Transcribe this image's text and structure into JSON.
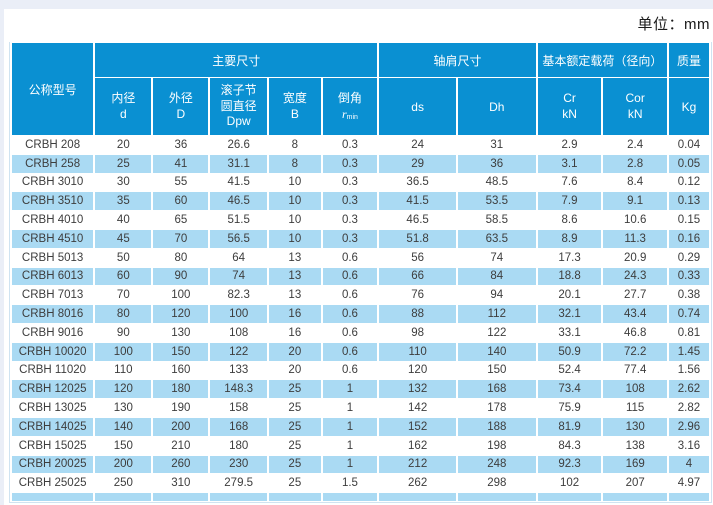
{
  "page": {
    "unit_label": "单位：mm"
  },
  "colors": {
    "header_bg": "#0a90d2",
    "row_alt_bg": "#aadaf3",
    "page_edge": "#eaeef7",
    "table_border": "#cfe3f1",
    "text_color": "#3d3d3d"
  },
  "table": {
    "groups": {
      "model": "公称型号",
      "main_dims": "主要尺寸",
      "shoulder_dims": "轴肩尺寸",
      "rated_load": "基本额定载荷（径向）",
      "mass": "质量"
    },
    "columns": {
      "bore": {
        "l1": "内径",
        "l2": "d"
      },
      "outer": {
        "l1": "外径",
        "l2": "D"
      },
      "pitch": {
        "l1": "滚子节",
        "l2": "圆直径",
        "l3": "Dpw"
      },
      "width": {
        "l1": "宽度",
        "l2": "B"
      },
      "chamfer": {
        "l1": "倒角",
        "sym": "r",
        "sub": "min"
      },
      "ds": "ds",
      "dh": "Dh",
      "cr": {
        "l1": "Cr",
        "l2": "kN"
      },
      "cor": {
        "l1": "Cor",
        "l2": "kN"
      },
      "kg": "Kg"
    },
    "rows": [
      [
        "CRBH 208",
        "20",
        "36",
        "26.6",
        "8",
        "0.3",
        "24",
        "31",
        "2.9",
        "2.4",
        "0.04"
      ],
      [
        "CRBH 258",
        "25",
        "41",
        "31.1",
        "8",
        "0.3",
        "29",
        "36",
        "3.1",
        "2.8",
        "0.05"
      ],
      [
        "CRBH 3010",
        "30",
        "55",
        "41.5",
        "10",
        "0.3",
        "36.5",
        "48.5",
        "7.6",
        "8.4",
        "0.12"
      ],
      [
        "CRBH 3510",
        "35",
        "60",
        "46.5",
        "10",
        "0.3",
        "41.5",
        "53.5",
        "7.9",
        "9.1",
        "0.13"
      ],
      [
        "CRBH 4010",
        "40",
        "65",
        "51.5",
        "10",
        "0.3",
        "46.5",
        "58.5",
        "8.6",
        "10.6",
        "0.15"
      ],
      [
        "CRBH 4510",
        "45",
        "70",
        "56.5",
        "10",
        "0.3",
        "51.8",
        "63.5",
        "8.9",
        "11.3",
        "0.16"
      ],
      [
        "CRBH 5013",
        "50",
        "80",
        "64",
        "13",
        "0.6",
        "56",
        "74",
        "17.3",
        "20.9",
        "0.29"
      ],
      [
        "CRBH 6013",
        "60",
        "90",
        "74",
        "13",
        "0.6",
        "66",
        "84",
        "18.8",
        "24.3",
        "0.33"
      ],
      [
        "CRBH 7013",
        "70",
        "100",
        "82.3",
        "13",
        "0.6",
        "76",
        "94",
        "20.1",
        "27.7",
        "0.38"
      ],
      [
        "CRBH 8016",
        "80",
        "120",
        "100",
        "16",
        "0.6",
        "88",
        "112",
        "32.1",
        "43.4",
        "0.74"
      ],
      [
        "CRBH 9016",
        "90",
        "130",
        "108",
        "16",
        "0.6",
        "98",
        "122",
        "33.1",
        "46.8",
        "0.81"
      ],
      [
        "CRBH 10020",
        "100",
        "150",
        "122",
        "20",
        "0.6",
        "110",
        "140",
        "50.9",
        "72.2",
        "1.45"
      ],
      [
        "CRBH 11020",
        "110",
        "160",
        "133",
        "20",
        "0.6",
        "120",
        "150",
        "52.4",
        "77.4",
        "1.56"
      ],
      [
        "CRBH 12025",
        "120",
        "180",
        "148.3",
        "25",
        "1",
        "132",
        "168",
        "73.4",
        "108",
        "2.62"
      ],
      [
        "CRBH 13025",
        "130",
        "190",
        "158",
        "25",
        "1",
        "142",
        "178",
        "75.9",
        "115",
        "2.82"
      ],
      [
        "CRBH 14025",
        "140",
        "200",
        "168",
        "25",
        "1",
        "152",
        "188",
        "81.9",
        "130",
        "2.96"
      ],
      [
        "CRBH 15025",
        "150",
        "210",
        "180",
        "25",
        "1",
        "162",
        "198",
        "84.3",
        "138",
        "3.16"
      ],
      [
        "CRBH 20025",
        "200",
        "260",
        "230",
        "25",
        "1",
        "212",
        "248",
        "92.3",
        "169",
        "4"
      ],
      [
        "CRBH 25025",
        "250",
        "310",
        "279.5",
        "25",
        "1.5",
        "262",
        "298",
        "102",
        "207",
        "4.97"
      ]
    ],
    "partial_next_row": true
  }
}
